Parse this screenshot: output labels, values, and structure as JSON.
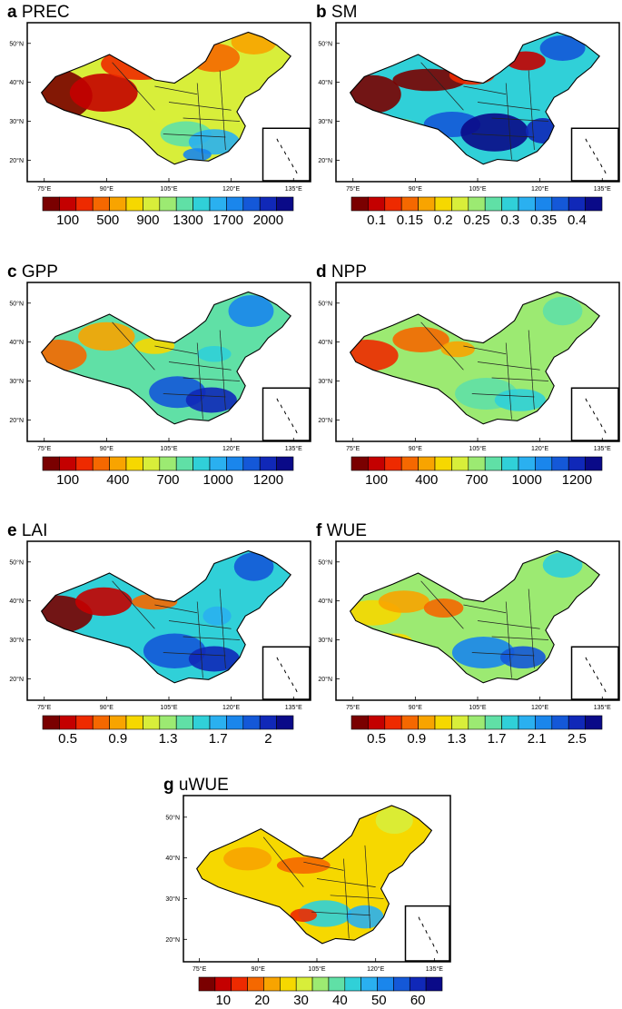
{
  "figure": {
    "panels": [
      {
        "letter": "a",
        "title": "PREC",
        "cbar_labels": [
          "100",
          "500",
          "900",
          "1300",
          "1700",
          "2000"
        ],
        "palette": "precip"
      },
      {
        "letter": "b",
        "title": "SM",
        "cbar_labels": [
          "0.1",
          "0.15",
          "0.2",
          "0.25",
          "0.3",
          "0.35",
          "0.4"
        ],
        "palette": "sm"
      },
      {
        "letter": "c",
        "title": "GPP",
        "cbar_labels": [
          "100",
          "400",
          "700",
          "1000",
          "1200"
        ],
        "palette": "gpp"
      },
      {
        "letter": "d",
        "title": "NPP",
        "cbar_labels": [
          "100",
          "400",
          "700",
          "1000",
          "1200"
        ],
        "palette": "npp"
      },
      {
        "letter": "e",
        "title": "LAI",
        "cbar_labels": [
          "0.5",
          "0.9",
          "1.3",
          "1.7",
          "2"
        ],
        "palette": "lai"
      },
      {
        "letter": "f",
        "title": "WUE",
        "cbar_labels": [
          "0.5",
          "0.9",
          "1.3",
          "1.7",
          "2.1",
          "2.5"
        ],
        "palette": "wue"
      },
      {
        "letter": "g",
        "title": "uWUE",
        "cbar_labels": [
          "10",
          "20",
          "30",
          "40",
          "50",
          "60"
        ],
        "palette": "uwue"
      }
    ],
    "lon_ticks": [
      "75°E",
      "90°E",
      "105°E",
      "120°E",
      "135°E"
    ],
    "lat_ticks": [
      "50°N",
      "40°N",
      "30°N",
      "20°N"
    ],
    "colorbar_colors": [
      "#7a0000",
      "#c40000",
      "#ee2a00",
      "#f56800",
      "#f8a400",
      "#f6d800",
      "#d8ee3a",
      "#9cea72",
      "#60e0a6",
      "#30d0d8",
      "#2ab0f0",
      "#1a86ec",
      "#1458d8",
      "#1028b8",
      "#0a0a88"
    ]
  }
}
